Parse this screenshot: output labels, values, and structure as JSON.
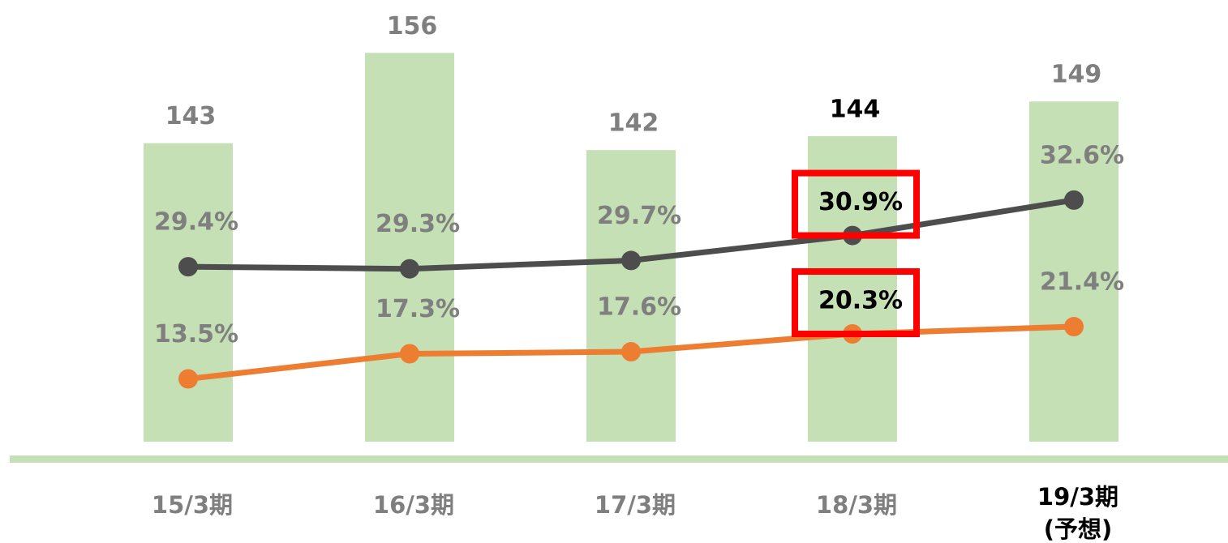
{
  "chart_data": {
    "type": "bar",
    "categories": [
      "15/3期",
      "16/3期",
      "17/3期",
      "18/3期",
      "19/3期\n(予想)"
    ],
    "values": [
      143,
      156,
      142,
      144,
      149
    ],
    "color": "#c5e0b4",
    "ylim": [
      100,
      160
    ],
    "y2lim": [
      21,
      41
    ],
    "y3lim": [
      4,
      67
    ],
    "series": [
      {
        "type": "line",
        "axis": "y2",
        "color": "#4d4d4d",
        "values": [
          29.4,
          29.3,
          29.7,
          30.9,
          32.6
        ],
        "value_labels": [
          "29.4%",
          "29.3%",
          "29.7%",
          "30.9%",
          "32.6%"
        ]
      },
      {
        "type": "line",
        "axis": "y3",
        "color": "#ed7d31",
        "values": [
          13.5,
          17.3,
          17.6,
          20.3,
          21.4
        ],
        "value_labels": [
          "13.5%",
          "17.3%",
          "17.6%",
          "20.3%",
          "21.4%"
        ]
      }
    ]
  }
}
